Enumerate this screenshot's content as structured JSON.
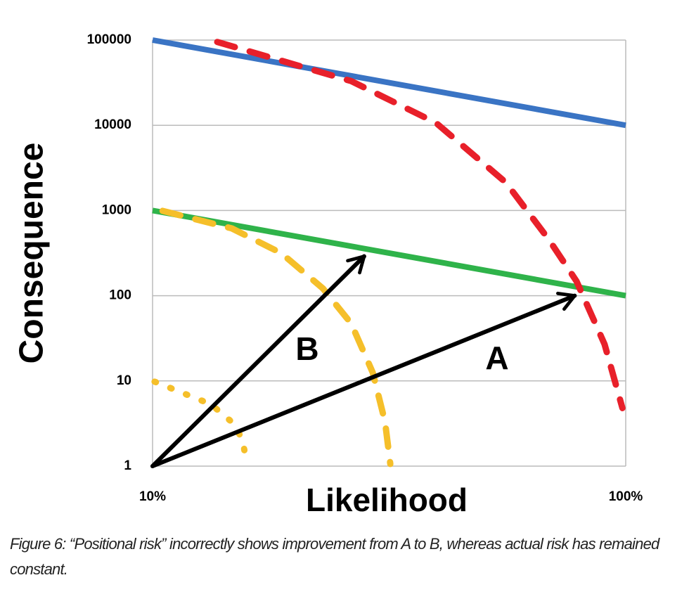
{
  "chart_data": {
    "type": "line",
    "x_label": "Likelihood",
    "y_label": "Consequence",
    "log_x": true,
    "log_y": true,
    "grid": true,
    "xlim": [
      10,
      100
    ],
    "xticks": [
      {
        "value": 10,
        "label": "10%"
      },
      {
        "value": 100,
        "label": "100%"
      }
    ],
    "ylim": [
      1,
      100000
    ],
    "yticks": [
      1,
      10,
      100,
      1000,
      10000,
      100000
    ],
    "series": [
      {
        "color": "#3a74c4",
        "style": "solid",
        "x": [
          10,
          100
        ],
        "values": [
          100000,
          10000
        ]
      },
      {
        "color": "#2fb34a",
        "style": "solid",
        "x": [
          10,
          100
        ],
        "values": [
          1000,
          100
        ]
      },
      {
        "color": "#e8202a",
        "style": "dashed",
        "x": [
          13.7,
          26.3,
          39.7,
          55.8,
          68.7,
          78.7,
          90.2,
          98.4
        ],
        "values": [
          95000,
          33000,
          10700,
          2130,
          460,
          148,
          27,
          4.8
        ]
      },
      {
        "color": "#f5bf2a",
        "style": "dashed",
        "x": [
          10.5,
          14.7,
          18.7,
          22.9,
          26.3,
          29.2,
          31,
          31.8
        ],
        "values": [
          990,
          617,
          316,
          122,
          47,
          12.5,
          3.3,
          1.06
        ]
      },
      {
        "color": "#f5bf2a",
        "style": "dotted",
        "x": [
          10.1,
          13.3,
          14.7,
          15.5,
          15.8
        ],
        "values": [
          9.8,
          5.3,
          3.3,
          2.06,
          1.06
        ]
      }
    ],
    "arrows": [
      {
        "label": "A",
        "from": [
          10,
          1
        ],
        "to": [
          78,
          100
        ]
      },
      {
        "label": "B",
        "from": [
          10,
          1
        ],
        "to": [
          28,
          290
        ]
      }
    ],
    "caption": "Figure 6: “Positional risk” incorrectly shows improvement from A to B, whereas actual risk has remained constant."
  }
}
